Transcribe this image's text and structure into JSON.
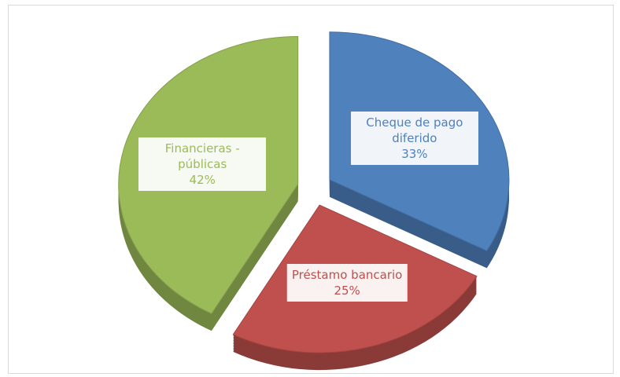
{
  "chart_data": {
    "type": "pie",
    "categories": [
      "Cheque de pago diferido",
      "Préstamo bancario",
      "Financieras - públicas"
    ],
    "values": [
      33,
      25,
      42
    ],
    "value_labels": [
      "33%",
      "25%",
      "42%"
    ],
    "colors": [
      "#4f81bd",
      "#c0504d",
      "#9bbb59"
    ]
  }
}
